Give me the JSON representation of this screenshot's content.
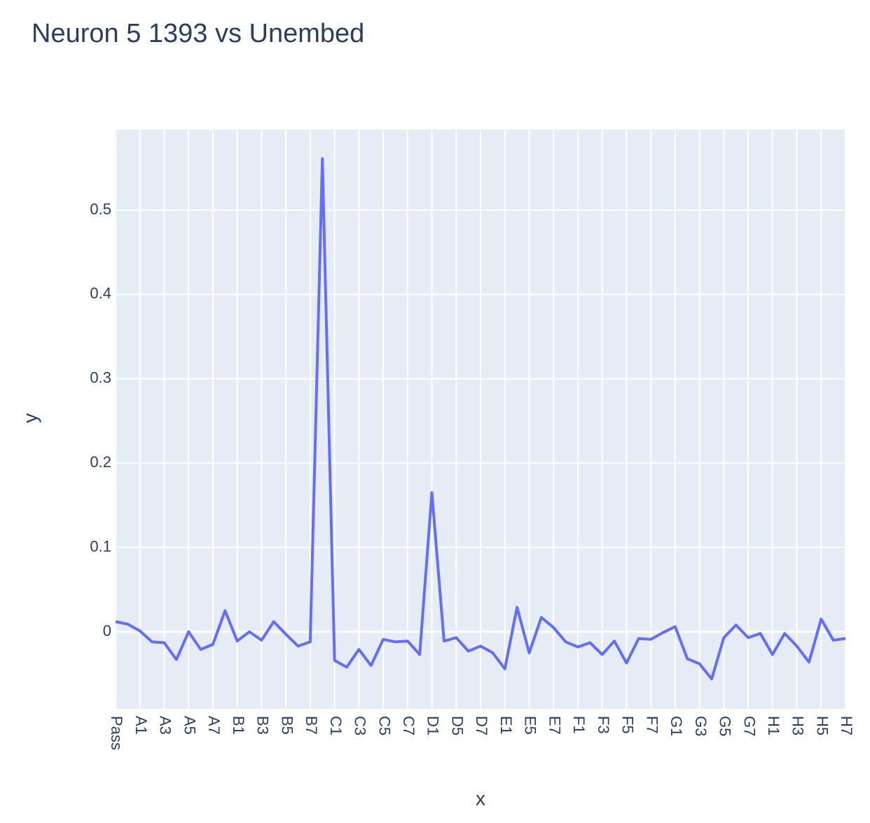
{
  "chart_data": {
    "type": "line",
    "title": "Neuron 5 1393 vs Unembed",
    "x_label": "x",
    "y_label": "y",
    "color": "#636efa",
    "grid": true,
    "categories": [
      "Pass",
      null,
      "A1",
      null,
      "A3",
      null,
      "A5",
      null,
      "A7",
      null,
      "B1",
      null,
      "B3",
      null,
      "B5",
      null,
      "B7",
      null,
      "C1",
      null,
      "C3",
      null,
      "C5",
      null,
      "C7",
      null,
      "D1",
      null,
      "D5",
      null,
      "D7",
      null,
      "E1",
      null,
      "E5",
      null,
      "E7",
      null,
      "F1",
      null,
      "F3",
      null,
      "F5",
      null,
      "F7",
      null,
      "G1",
      null,
      "G3",
      null,
      "G5",
      null,
      "G7",
      null,
      "H1",
      null,
      "H3",
      null,
      "H5",
      null,
      "H7"
    ],
    "values": [
      0.012,
      0.009,
      0.001,
      -0.012,
      -0.013,
      -0.033,
      0.0,
      -0.021,
      -0.015,
      0.025,
      -0.011,
      0.0,
      -0.01,
      0.012,
      -0.003,
      -0.017,
      -0.012,
      0.561,
      -0.034,
      -0.042,
      -0.021,
      -0.04,
      -0.009,
      -0.012,
      -0.011,
      -0.027,
      0.165,
      -0.011,
      -0.007,
      -0.023,
      -0.017,
      -0.025,
      -0.044,
      0.029,
      -0.025,
      0.017,
      0.005,
      -0.012,
      -0.018,
      -0.013,
      -0.027,
      -0.011,
      -0.037,
      -0.008,
      -0.009,
      -0.001,
      0.006,
      -0.032,
      -0.038,
      -0.056,
      -0.007,
      0.008,
      -0.007,
      -0.002,
      -0.027,
      -0.002,
      -0.017,
      -0.036,
      0.015,
      -0.01,
      -0.008
    ],
    "ylim": [
      -0.0914,
      0.5955
    ],
    "yticks": [
      0,
      0.1,
      0.2,
      0.3,
      0.4,
      0.5
    ]
  }
}
